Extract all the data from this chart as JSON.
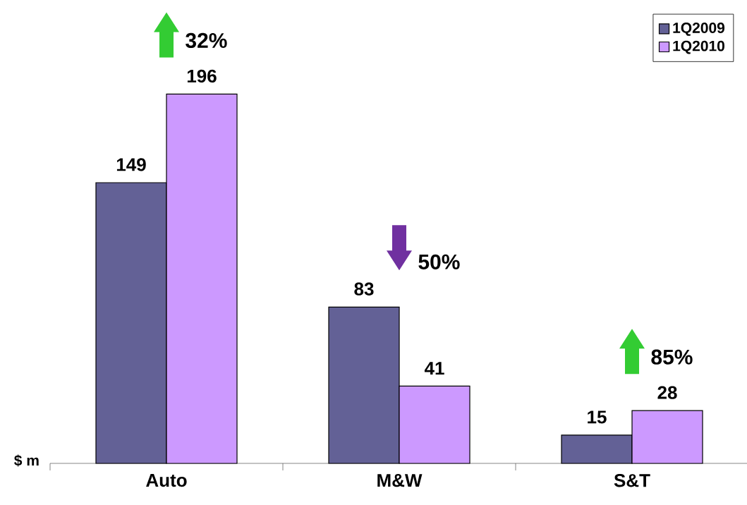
{
  "chart_data": {
    "type": "bar",
    "ylabel": "$ m",
    "categories": [
      "Auto",
      "M&W",
      "S&T"
    ],
    "series": [
      {
        "name": "1Q2009",
        "color": "#636196",
        "values": [
          149,
          83,
          15
        ]
      },
      {
        "name": "1Q2010",
        "color": "#cc99ff",
        "values": [
          196,
          41,
          28
        ]
      }
    ],
    "data_labels": true,
    "legend": "top right",
    "annotations": [
      "32%",
      "50%",
      "85%"
    ]
  }
}
